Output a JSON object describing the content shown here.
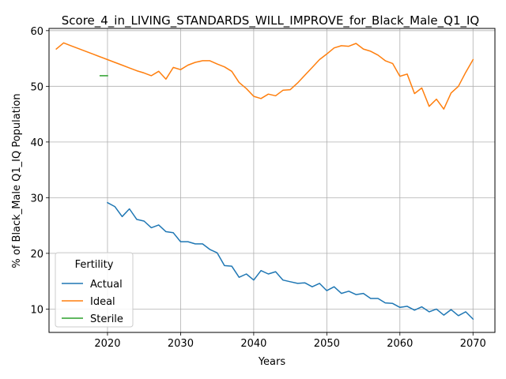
{
  "chart_data": {
    "type": "line",
    "title": "Score_4_in_LIVING_STANDARDS_WILL_IMPROVE_for_Black_Male_Q1_IQ",
    "xlabel": "Years",
    "ylabel": "% of Black_Male Q1_IQ Population",
    "xlim": [
      2012,
      2073
    ],
    "ylim": [
      5.8,
      60.4
    ],
    "xticks": [
      "2020",
      "2030",
      "2040",
      "2050",
      "2060",
      "2070"
    ],
    "yticks": [
      "10",
      "20",
      "30",
      "40",
      "50",
      "60"
    ],
    "grid": true,
    "legend": {
      "title": "Fertility",
      "placement": "lower-left"
    },
    "series": [
      {
        "name": "Actual",
        "color": "#1f77b4",
        "x": [
          2020,
          2021,
          2022,
          2023,
          2024,
          2025,
          2026,
          2027,
          2028,
          2029,
          2030,
          2031,
          2032,
          2033,
          2034,
          2035,
          2036,
          2037,
          2038,
          2039,
          2040,
          2041,
          2042,
          2043,
          2044,
          2045,
          2046,
          2047,
          2048,
          2049,
          2050,
          2051,
          2052,
          2053,
          2054,
          2055,
          2056,
          2057,
          2058,
          2059,
          2060,
          2061,
          2062,
          2063,
          2064,
          2065,
          2066,
          2067,
          2068,
          2069,
          2070
        ],
        "y": [
          29.1,
          28.4,
          26.6,
          28.0,
          26.1,
          25.8,
          24.6,
          25.1,
          23.9,
          23.7,
          22.1,
          22.1,
          21.7,
          21.7,
          20.7,
          20.1,
          17.8,
          17.7,
          15.7,
          16.3,
          15.2,
          16.9,
          16.3,
          16.7,
          15.2,
          14.9,
          14.6,
          14.7,
          14.0,
          14.6,
          13.3,
          14.0,
          12.8,
          13.2,
          12.6,
          12.8,
          11.9,
          11.9,
          11.1,
          11.0,
          10.3,
          10.5,
          9.8,
          10.4,
          9.5,
          10.0,
          8.9,
          9.9,
          8.8,
          9.5,
          8.2
        ]
      },
      {
        "name": "Ideal",
        "color": "#ff7f0e",
        "x": [
          2013,
          2014,
          2015,
          2016,
          2017,
          2018,
          2019,
          2020,
          2021,
          2022,
          2023,
          2024,
          2025,
          2026,
          2027,
          2028,
          2029,
          2030,
          2031,
          2032,
          2033,
          2034,
          2035,
          2036,
          2037,
          2038,
          2039,
          2040,
          2041,
          2042,
          2043,
          2044,
          2045,
          2046,
          2047,
          2048,
          2049,
          2050,
          2051,
          2052,
          2053,
          2054,
          2055,
          2056,
          2057,
          2058,
          2059,
          2060,
          2061,
          2062,
          2063,
          2064,
          2065,
          2066,
          2067,
          2068,
          2069,
          2070
        ],
        "y": [
          56.7,
          57.8,
          57.3,
          56.8,
          56.3,
          55.8,
          55.3,
          54.8,
          54.3,
          53.8,
          53.3,
          52.8,
          52.4,
          51.9,
          52.7,
          51.3,
          53.4,
          53.0,
          53.8,
          54.3,
          54.6,
          54.6,
          54.0,
          53.5,
          52.7,
          50.7,
          49.6,
          48.2,
          47.8,
          48.6,
          48.3,
          49.3,
          49.4,
          50.6,
          52.0,
          53.4,
          54.8,
          55.8,
          56.9,
          57.3,
          57.2,
          57.7,
          56.7,
          56.3,
          55.6,
          54.6,
          54.1,
          51.8,
          52.2,
          48.7,
          49.7,
          46.4,
          47.7,
          45.9,
          48.8,
          50.0,
          52.5,
          54.8
        ]
      },
      {
        "name": "Sterile",
        "color": "#2ca02c",
        "x": [
          2019,
          2020
        ],
        "y": [
          51.9,
          51.9
        ]
      }
    ]
  }
}
